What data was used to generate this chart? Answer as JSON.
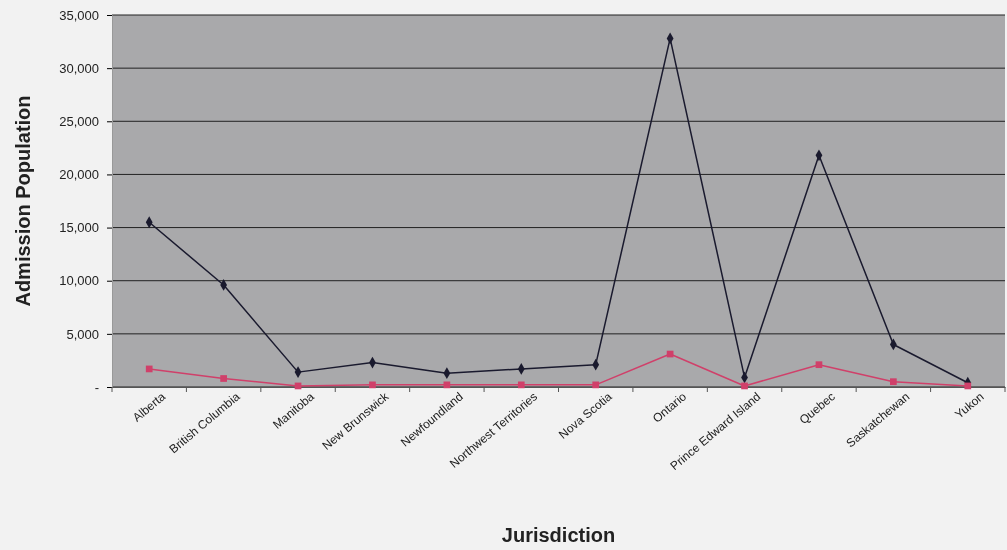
{
  "chart_data": {
    "type": "line",
    "xlabel": "Jurisdiction",
    "ylabel": "Admission Population",
    "categories": [
      "Alberta",
      "British Columbia",
      "Manitoba",
      "New Brunswick",
      "Newfoundland",
      "Northwest Territories",
      "Nova Scotia",
      "Ontario",
      "Prince Edward Island",
      "Quebec",
      "Saskatchewan",
      "Yukon"
    ],
    "series": [
      {
        "color": "#1a1a2e",
        "marker": "diamond",
        "values": [
          15500,
          9600,
          1400,
          2300,
          1300,
          1700,
          2100,
          32800,
          900,
          21800,
          4000,
          400
        ]
      },
      {
        "color": "#d0406a",
        "marker": "square",
        "values": [
          1700,
          800,
          100,
          200,
          200,
          200,
          200,
          3100,
          100,
          2100,
          500,
          100
        ]
      }
    ],
    "ylim": [
      0,
      35000
    ],
    "yticks": [
      {
        "value": 0,
        "label": "-"
      },
      {
        "value": 5000,
        "label": "5,000"
      },
      {
        "value": 10000,
        "label": "10,000"
      },
      {
        "value": 15000,
        "label": "15,000"
      },
      {
        "value": 20000,
        "label": "20,000"
      },
      {
        "value": 25000,
        "label": "25,000"
      },
      {
        "value": 30000,
        "label": "30,000"
      },
      {
        "value": 35000,
        "label": "35,000"
      }
    ],
    "grid": "y",
    "line_style": "solid"
  }
}
